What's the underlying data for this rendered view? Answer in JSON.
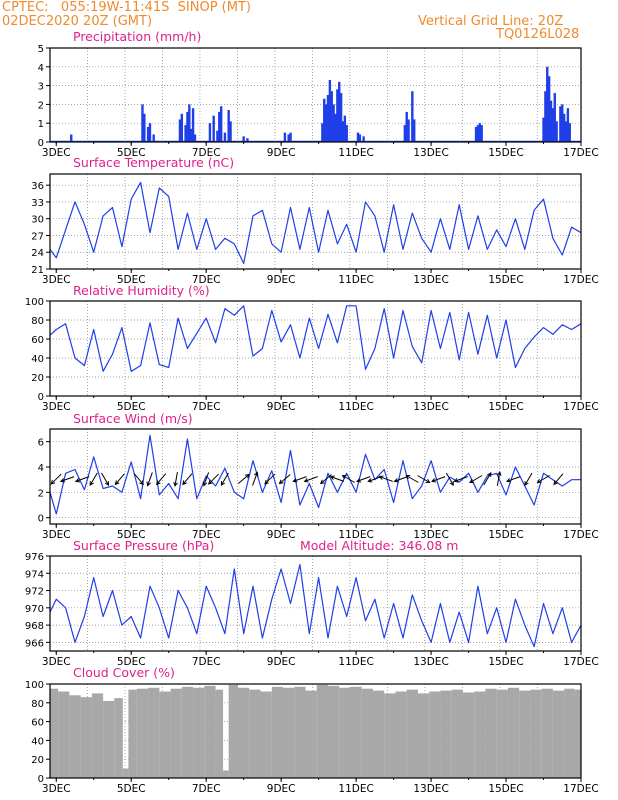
{
  "header": {
    "line1": "CPTEC:   055:19W-11:41S  SINOP (MT)",
    "line2": "02DEC2020 20Z (GMT)",
    "right1": "Vertical Grid Line: 20Z",
    "right2": "TQ0126L028",
    "model_altitude": "Model Altitude: 346.08 m"
  },
  "colors": {
    "header": "#f08a2c",
    "title": "#e0208c",
    "line": "#1f3fe8",
    "bar": "#1f3fe8",
    "cloud": "#a8a8a8",
    "grid": "#888888"
  },
  "chart_data": [
    {
      "type": "bar",
      "title": "Precipitation (mm/h)",
      "x_range": [
        2.833,
        17.0
      ],
      "ylim": [
        0,
        5
      ],
      "yticks": [
        0,
        1,
        2,
        3,
        4,
        5
      ],
      "xticks": [
        "3DEC",
        "5DEC",
        "7DEC",
        "9DEC",
        "11DEC",
        "13DEC",
        "15DEC",
        "17DEC"
      ],
      "x": [
        3.4,
        5.3,
        5.35,
        5.45,
        5.5,
        5.6,
        6.3,
        6.35,
        6.45,
        6.5,
        6.55,
        6.6,
        6.65,
        6.7,
        7.1,
        7.2,
        7.3,
        7.35,
        7.4,
        7.5,
        7.6,
        7.65,
        8.0,
        8.1,
        9.1,
        9.2,
        9.25,
        10.1,
        10.15,
        10.2,
        10.25,
        10.3,
        10.35,
        10.4,
        10.45,
        10.5,
        10.55,
        10.6,
        10.65,
        10.7,
        10.75,
        11.05,
        11.1,
        11.2,
        12.3,
        12.35,
        12.4,
        12.5,
        12.55,
        14.2,
        14.25,
        14.3,
        14.35,
        16.0,
        16.05,
        16.1,
        16.15,
        16.2,
        16.25,
        16.3,
        16.35,
        16.45,
        16.5,
        16.55,
        16.6,
        16.65,
        16.7
      ],
      "values": [
        0.4,
        2.0,
        1.5,
        0.8,
        1.0,
        0.4,
        1.2,
        1.5,
        0.9,
        1.6,
        2.0,
        0.7,
        1.8,
        0.4,
        1.0,
        1.4,
        0.6,
        1.6,
        1.9,
        0.5,
        1.7,
        1.1,
        0.3,
        0.2,
        0.5,
        0.4,
        0.5,
        1.0,
        2.3,
        2.0,
        2.5,
        3.3,
        2.7,
        2.0,
        1.5,
        2.8,
        3.2,
        2.6,
        1.1,
        1.4,
        0.9,
        0.5,
        0.4,
        0.3,
        0.9,
        1.6,
        1.2,
        2.7,
        1.2,
        0.8,
        0.9,
        1.0,
        0.9,
        1.3,
        2.7,
        4.0,
        3.5,
        2.2,
        1.8,
        2.6,
        1.1,
        1.9,
        2.0,
        1.5,
        1.1,
        1.8,
        1.0
      ]
    },
    {
      "type": "line",
      "title": "Surface Temperature (nC)",
      "x_range": [
        2.833,
        17.0
      ],
      "ylim": [
        21,
        38
      ],
      "yticks": [
        21,
        24,
        27,
        30,
        33,
        36
      ],
      "xticks": [
        "3DEC",
        "5DEC",
        "7DEC",
        "9DEC",
        "11DEC",
        "13DEC",
        "15DEC",
        "17DEC"
      ],
      "x": [
        2.833,
        3.0,
        3.25,
        3.5,
        3.75,
        4.0,
        4.25,
        4.5,
        4.75,
        5.0,
        5.25,
        5.5,
        5.75,
        6.0,
        6.25,
        6.5,
        6.75,
        7.0,
        7.25,
        7.5,
        7.75,
        8.0,
        8.25,
        8.5,
        8.75,
        9.0,
        9.25,
        9.5,
        9.75,
        10.0,
        10.25,
        10.5,
        10.75,
        11.0,
        11.25,
        11.5,
        11.75,
        12.0,
        12.25,
        12.5,
        12.75,
        13.0,
        13.25,
        13.5,
        13.75,
        14.0,
        14.25,
        14.5,
        14.75,
        15.0,
        15.25,
        15.5,
        15.75,
        16.0,
        16.25,
        16.5,
        16.75,
        17.0
      ],
      "values": [
        24.5,
        23.0,
        28.0,
        33.0,
        29.0,
        24.0,
        30.5,
        32.0,
        25.0,
        33.5,
        36.5,
        27.5,
        35.5,
        34.0,
        24.5,
        31.0,
        24.5,
        30.0,
        24.5,
        26.5,
        25.5,
        22.0,
        30.5,
        31.5,
        25.5,
        24.0,
        32.0,
        24.5,
        32.0,
        24.0,
        31.5,
        25.5,
        29.0,
        24.0,
        33.0,
        30.5,
        24.0,
        32.5,
        24.5,
        31.0,
        26.5,
        24.0,
        30.0,
        24.5,
        32.5,
        24.5,
        30.5,
        24.5,
        28.0,
        25.0,
        30.0,
        24.5,
        31.5,
        33.5,
        26.5,
        23.5,
        28.5,
        27.5
      ]
    },
    {
      "type": "line",
      "title": "Relative Humidity (%)",
      "x_range": [
        2.833,
        17.0
      ],
      "ylim": [
        0,
        100
      ],
      "yticks": [
        0,
        20,
        40,
        60,
        80,
        100
      ],
      "xticks": [
        "3DEC",
        "5DEC",
        "7DEC",
        "9DEC",
        "11DEC",
        "13DEC",
        "15DEC",
        "17DEC"
      ],
      "x": [
        2.833,
        3.0,
        3.25,
        3.5,
        3.75,
        4.0,
        4.25,
        4.5,
        4.75,
        5.0,
        5.25,
        5.5,
        5.75,
        6.0,
        6.25,
        6.5,
        6.75,
        7.0,
        7.25,
        7.5,
        7.75,
        8.0,
        8.25,
        8.5,
        8.75,
        9.0,
        9.25,
        9.5,
        9.75,
        10.0,
        10.25,
        10.5,
        10.75,
        11.0,
        11.25,
        11.5,
        11.75,
        12.0,
        12.25,
        12.5,
        12.75,
        13.0,
        13.25,
        13.5,
        13.75,
        14.0,
        14.25,
        14.5,
        14.75,
        15.0,
        15.25,
        15.5,
        15.75,
        16.0,
        16.25,
        16.5,
        16.75,
        17.0
      ],
      "values": [
        64,
        70,
        76,
        40,
        32,
        70,
        26,
        44,
        72,
        26,
        32,
        77,
        33,
        30,
        82,
        50,
        66,
        82,
        56,
        92,
        85,
        95,
        42,
        50,
        90,
        57,
        75,
        40,
        82,
        50,
        86,
        56,
        95,
        95,
        28,
        50,
        92,
        40,
        90,
        52,
        35,
        90,
        50,
        88,
        38,
        88,
        44,
        85,
        40,
        80,
        30,
        50,
        62,
        72,
        65,
        75,
        70,
        76
      ]
    },
    {
      "type": "line",
      "title": "Surface Wind (m/s)",
      "x_range": [
        2.833,
        17.0
      ],
      "ylim": [
        -0.5,
        7
      ],
      "yticks": [
        0,
        2,
        4,
        6
      ],
      "xticks": [
        "3DEC",
        "5DEC",
        "7DEC",
        "9DEC",
        "11DEC",
        "13DEC",
        "15DEC",
        "17DEC"
      ],
      "x": [
        2.833,
        3.0,
        3.25,
        3.5,
        3.75,
        4.0,
        4.25,
        4.5,
        4.75,
        5.0,
        5.25,
        5.5,
        5.75,
        6.0,
        6.25,
        6.5,
        6.75,
        7.0,
        7.25,
        7.5,
        7.75,
        8.0,
        8.25,
        8.5,
        8.75,
        9.0,
        9.25,
        9.5,
        9.75,
        10.0,
        10.25,
        10.5,
        10.75,
        11.0,
        11.25,
        11.5,
        11.75,
        12.0,
        12.25,
        12.5,
        12.75,
        13.0,
        13.25,
        13.5,
        13.75,
        14.0,
        14.25,
        14.5,
        14.75,
        15.0,
        15.25,
        15.5,
        15.75,
        16.0,
        16.25,
        16.5,
        16.75,
        17.0
      ],
      "values": [
        2.0,
        0.3,
        3.5,
        3.8,
        2.2,
        4.8,
        2.3,
        2.5,
        2.0,
        4.4,
        1.5,
        6.5,
        1.8,
        2.7,
        1.5,
        6.2,
        1.5,
        3.3,
        2.5,
        3.9,
        2.0,
        1.5,
        4.5,
        2.0,
        3.7,
        1.2,
        5.3,
        1.0,
        2.7,
        0.8,
        3.5,
        2.0,
        3.5,
        2.0,
        5.0,
        3.0,
        3.8,
        1.2,
        4.5,
        1.5,
        2.5,
        4.5,
        2.0,
        3.2,
        2.8,
        3.5,
        2.0,
        3.3,
        3.5,
        1.8,
        4.0,
        2.5,
        1.0,
        3.5,
        3.0,
        2.5,
        3.0,
        3.0
      ]
    },
    {
      "type": "line",
      "title": "Surface Pressure (hPa)",
      "x_range": [
        2.833,
        17.0
      ],
      "ylim": [
        965,
        976
      ],
      "yticks": [
        966,
        968,
        970,
        972,
        974,
        976
      ],
      "xticks": [
        "3DEC",
        "5DEC",
        "7DEC",
        "9DEC",
        "11DEC",
        "13DEC",
        "15DEC",
        "17DEC"
      ],
      "x": [
        2.833,
        3.0,
        3.25,
        3.5,
        3.75,
        4.0,
        4.25,
        4.5,
        4.75,
        5.0,
        5.25,
        5.5,
        5.75,
        6.0,
        6.25,
        6.5,
        6.75,
        7.0,
        7.25,
        7.5,
        7.75,
        8.0,
        8.25,
        8.5,
        8.75,
        9.0,
        9.25,
        9.5,
        9.75,
        10.0,
        10.25,
        10.5,
        10.75,
        11.0,
        11.25,
        11.5,
        11.75,
        12.0,
        12.25,
        12.5,
        12.75,
        13.0,
        13.25,
        13.5,
        13.75,
        14.0,
        14.25,
        14.5,
        14.75,
        15.0,
        15.25,
        15.5,
        15.75,
        16.0,
        16.25,
        16.5,
        16.75,
        17.0
      ],
      "values": [
        969.5,
        971.0,
        970.0,
        966.0,
        969.0,
        973.5,
        969.0,
        972.0,
        968.0,
        969.0,
        966.5,
        972.5,
        970.0,
        966.5,
        972.0,
        970.0,
        967.0,
        972.5,
        970.0,
        967.0,
        974.5,
        967.0,
        972.5,
        966.5,
        971.0,
        974.5,
        970.5,
        975.0,
        967.0,
        973.5,
        966.5,
        972.5,
        969.0,
        973.5,
        968.5,
        971.0,
        966.5,
        970.5,
        966.5,
        971.5,
        968.5,
        966.0,
        970.5,
        966.0,
        969.5,
        966.0,
        972.5,
        967.0,
        970.0,
        966.0,
        971.0,
        968.0,
        965.5,
        970.5,
        967.0,
        970.0,
        966.0,
        968.0
      ]
    },
    {
      "type": "bar",
      "title": "Cloud Cover (%)",
      "x_range": [
        2.833,
        17.0
      ],
      "ylim": [
        0,
        100
      ],
      "yticks": [
        0,
        20,
        40,
        60,
        80,
        100
      ],
      "xticks": [
        "3DEC",
        "5DEC",
        "7DEC",
        "9DEC",
        "11DEC",
        "13DEC",
        "15DEC",
        "17DEC"
      ],
      "x": [
        2.9,
        3.2,
        3.5,
        3.8,
        4.1,
        4.4,
        4.7,
        4.85,
        5.0,
        5.3,
        5.6,
        5.9,
        6.2,
        6.5,
        6.8,
        7.1,
        7.4,
        7.5,
        7.7,
        8.0,
        8.3,
        8.6,
        8.9,
        9.2,
        9.5,
        9.8,
        10.1,
        10.4,
        10.7,
        11.0,
        11.3,
        11.6,
        11.9,
        12.2,
        12.5,
        12.8,
        13.1,
        13.4,
        13.7,
        14.0,
        14.3,
        14.6,
        14.9,
        15.2,
        15.5,
        15.8,
        16.1,
        16.4,
        16.7,
        16.95
      ],
      "values": [
        95,
        92,
        88,
        86,
        90,
        82,
        85,
        10,
        94,
        95,
        96,
        92,
        95,
        97,
        96,
        98,
        94,
        8,
        99,
        96,
        94,
        92,
        97,
        96,
        97,
        93,
        99,
        98,
        96,
        97,
        95,
        93,
        90,
        92,
        94,
        90,
        92,
        93,
        94,
        91,
        92,
        95,
        94,
        96,
        93,
        94,
        95,
        93,
        95,
        94
      ]
    },
    {
      "type": "wind_arrows",
      "x": [
        3.0,
        3.3,
        3.7,
        4.0,
        4.3,
        4.7,
        5.2,
        5.5,
        5.8,
        6.2,
        6.5,
        7.0,
        7.2,
        7.5,
        8.0,
        8.3,
        8.7,
        9.1,
        9.5,
        9.8,
        10.2,
        10.5,
        10.8,
        11.2,
        11.5,
        11.8,
        12.2,
        12.5,
        12.8,
        13.2,
        13.5,
        13.8,
        14.2,
        14.5,
        14.8,
        15.2,
        15.6,
        16.0,
        16.4
      ],
      "dir": [
        225,
        200,
        200,
        240,
        300,
        230,
        310,
        250,
        230,
        260,
        230,
        250,
        225,
        240,
        40,
        70,
        225,
        220,
        200,
        200,
        220,
        160,
        150,
        200,
        200,
        160,
        200,
        150,
        330,
        200,
        300,
        200,
        210,
        60,
        80,
        200,
        240,
        210,
        230
      ]
    }
  ]
}
